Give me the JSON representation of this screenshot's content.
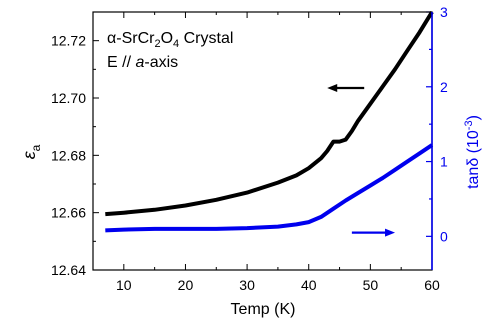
{
  "chart_data": {
    "type": "line",
    "xlabel": "Temp (K)",
    "ylabel_left": {
      "symbol": "ε",
      "subscript": "a"
    },
    "ylabel_right": {
      "main": "tanδ (10",
      "superscript": "-3",
      "tail": ")"
    },
    "annotation": {
      "line1": {
        "alpha": "α",
        "compound": "-SrCr",
        "sub1": "2",
        "mid": "O",
        "sub2": "4",
        "tail": " Crystal"
      },
      "line2": {
        "prefix": "E // ",
        "italic": "a",
        "suffix": "-axis"
      }
    },
    "xlim": [
      5,
      60
    ],
    "ylim_left": [
      12.64,
      12.73
    ],
    "ylim_right": [
      -0.45,
      3
    ],
    "x_ticks": [
      "10",
      "20",
      "30",
      "40",
      "50",
      "60"
    ],
    "y_ticks_left": [
      "12.64",
      "12.66",
      "12.68",
      "12.70",
      "12.72"
    ],
    "y_ticks_right": [
      "0",
      "1",
      "2",
      "3"
    ],
    "colors": {
      "epsilon": "#000000",
      "tan_delta": "#0000ee"
    },
    "series": [
      {
        "axis": "left",
        "x": [
          7,
          10,
          15,
          20,
          25,
          30,
          35,
          38,
          40,
          42,
          43,
          44,
          45,
          46,
          47,
          48,
          50,
          52,
          54,
          56,
          58,
          60
        ],
        "values": [
          12.6595,
          12.66,
          12.661,
          12.6625,
          12.6645,
          12.667,
          12.6705,
          12.673,
          12.6755,
          12.679,
          12.6815,
          12.6848,
          12.6848,
          12.6855,
          12.6885,
          12.692,
          12.698,
          12.704,
          12.71,
          12.7165,
          12.723,
          12.73
        ]
      },
      {
        "axis": "right",
        "x": [
          7,
          10,
          15,
          20,
          25,
          30,
          35,
          38,
          40,
          42,
          44,
          46,
          48,
          50,
          52,
          54,
          56,
          58,
          60
        ],
        "values": [
          0.08,
          0.09,
          0.1,
          0.1,
          0.1,
          0.11,
          0.13,
          0.16,
          0.19,
          0.26,
          0.37,
          0.48,
          0.58,
          0.68,
          0.78,
          0.89,
          1.0,
          1.11,
          1.22
        ]
      }
    ],
    "arrows": [
      {
        "series_axis": "left",
        "direction": "left",
        "x_start": 49,
        "x_end": 43,
        "y": 12.7035
      },
      {
        "series_axis": "right",
        "direction": "right",
        "x_start": 47,
        "x_end": 54,
        "y": 0.05
      }
    ]
  }
}
